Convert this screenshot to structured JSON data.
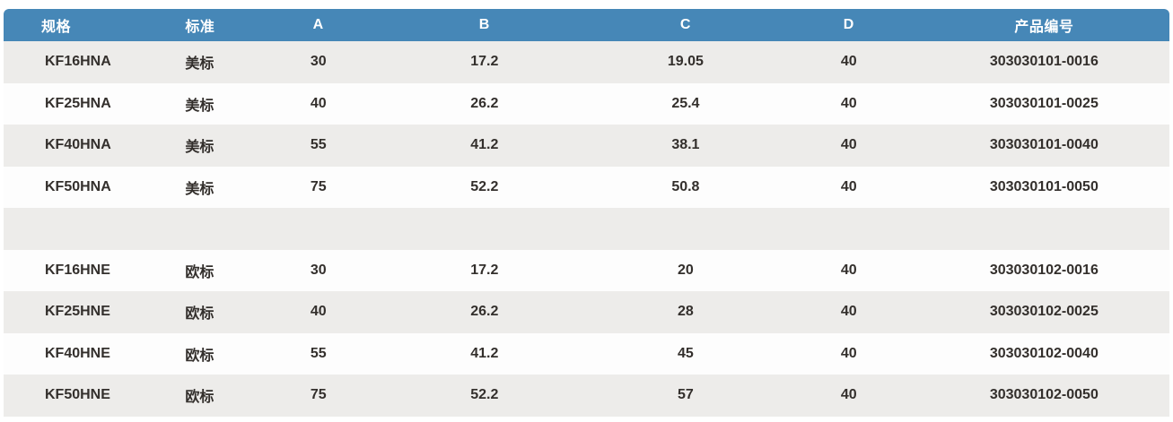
{
  "table": {
    "accent_color": "#4687B7",
    "stripe_color": "#EDECEA",
    "header_text_color": "#FFFFFF",
    "body_text_color": "#332F2C",
    "columns": [
      {
        "key": "spec",
        "label": "规格"
      },
      {
        "key": "std",
        "label": "标准"
      },
      {
        "key": "a",
        "label": "A"
      },
      {
        "key": "b",
        "label": "B"
      },
      {
        "key": "c",
        "label": "C"
      },
      {
        "key": "d",
        "label": "D"
      },
      {
        "key": "code",
        "label": "产品编号"
      }
    ],
    "rows": [
      {
        "spec": "KF16HNA",
        "std": "美标",
        "a": "30",
        "b": "17.2",
        "c": "19.05",
        "d": "40",
        "code": "303030101-0016"
      },
      {
        "spec": "KF25HNA",
        "std": "美标",
        "a": "40",
        "b": "26.2",
        "c": "25.4",
        "d": "40",
        "code": "303030101-0025"
      },
      {
        "spec": "KF40HNA",
        "std": "美标",
        "a": "55",
        "b": "41.2",
        "c": "38.1",
        "d": "40",
        "code": "303030101-0040"
      },
      {
        "spec": "KF50HNA",
        "std": "美标",
        "a": "75",
        "b": "52.2",
        "c": "50.8",
        "d": "40",
        "code": "303030101-0050"
      },
      {
        "spacer": true,
        "spec": "",
        "std": "",
        "a": "",
        "b": "",
        "c": "",
        "d": "",
        "code": ""
      },
      {
        "spec": "KF16HNE",
        "std": "欧标",
        "a": "30",
        "b": "17.2",
        "c": "20",
        "d": "40",
        "code": "303030102-0016"
      },
      {
        "spec": "KF25HNE",
        "std": "欧标",
        "a": "40",
        "b": "26.2",
        "c": "28",
        "d": "40",
        "code": "303030102-0025"
      },
      {
        "spec": "KF40HNE",
        "std": "欧标",
        "a": "55",
        "b": "41.2",
        "c": "45",
        "d": "40",
        "code": "303030102-0040"
      },
      {
        "spec": "KF50HNE",
        "std": "欧标",
        "a": "75",
        "b": "52.2",
        "c": "57",
        "d": "40",
        "code": "303030102-0050"
      }
    ]
  }
}
